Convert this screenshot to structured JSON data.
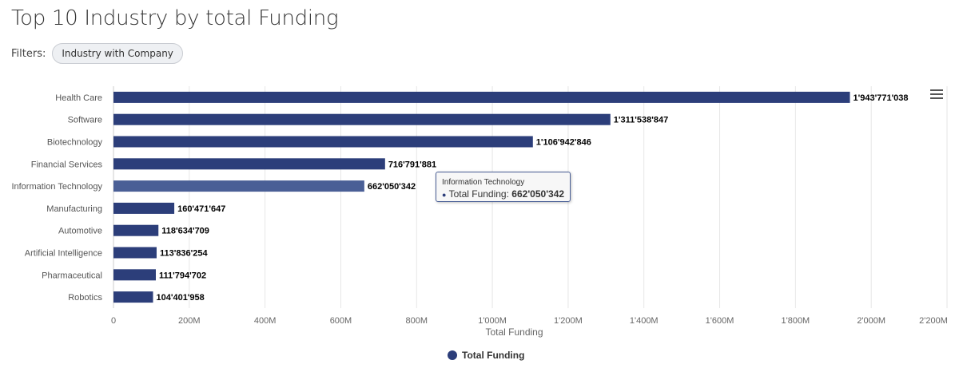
{
  "header": {
    "title": "Top 10 Industry by total Funding"
  },
  "filters": {
    "label": "Filters:",
    "chips": [
      "Industry with Company"
    ]
  },
  "chart_data": {
    "type": "bar",
    "orientation": "horizontal",
    "categories": [
      "Health Care",
      "Software",
      "Biotechnology",
      "Financial Services",
      "Information Technology",
      "Manufacturing",
      "Automotive",
      "Artificial Intelligence",
      "Pharmaceutical",
      "Robotics"
    ],
    "series": [
      {
        "name": "Total Funding",
        "values": [
          1943771038,
          1311538847,
          1106942846,
          716791881,
          662050342,
          160471647,
          118634709,
          113836254,
          111794702,
          104401958
        ]
      }
    ],
    "data_labels": [
      "1'943'771'038",
      "1'311'538'847",
      "1'106'942'846",
      "716'791'881",
      "662'050'342",
      "160'471'647",
      "118'634'709",
      "113'836'254",
      "111'794'702",
      "104'401'958"
    ],
    "xlabel": "Total Funding",
    "xlim": [
      0,
      2200000000
    ],
    "x_ticks": [
      0,
      200000000,
      400000000,
      600000000,
      800000000,
      1000000000,
      1200000000,
      1400000000,
      1600000000,
      1800000000,
      2000000000,
      2200000000
    ],
    "x_tick_labels": [
      "0",
      "200M",
      "400M",
      "600M",
      "800M",
      "1'000M",
      "1'200M",
      "1'400M",
      "1'600M",
      "1'800M",
      "2'000M",
      "2'200M"
    ],
    "grid": true,
    "legend": "bottom-center",
    "color": "#2c3e7a",
    "highlight_color": "#4a5f96",
    "highlighted_index": 4
  },
  "tooltip": {
    "title": "Information Technology",
    "series": "Total Funding:",
    "value": "662'050'342"
  },
  "legend": {
    "label": "Total Funding"
  }
}
